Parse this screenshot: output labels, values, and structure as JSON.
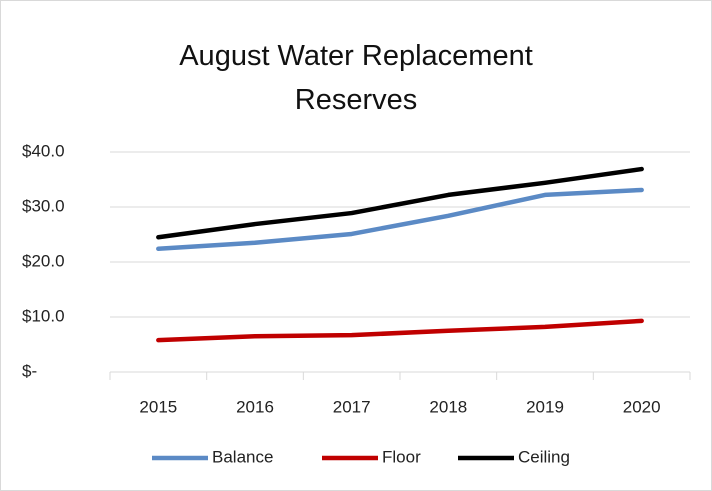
{
  "chart_data": {
    "type": "line",
    "title": "August Water Replacement Reserves",
    "categories": [
      "2015",
      "2016",
      "2017",
      "2018",
      "2019",
      "2020"
    ],
    "series": [
      {
        "name": "Balance",
        "color": "#5b8ac5",
        "values": [
          22.4,
          23.5,
          25.1,
          28.4,
          32.2,
          33.1
        ]
      },
      {
        "name": "Floor",
        "color": "#c00000",
        "values": [
          5.8,
          6.5,
          6.7,
          7.5,
          8.2,
          9.3
        ]
      },
      {
        "name": "Ceiling",
        "color": "#000000",
        "values": [
          24.5,
          26.9,
          28.9,
          32.2,
          34.4,
          36.9
        ]
      }
    ],
    "ylim": [
      0,
      40
    ],
    "yticks": [
      {
        "value": 0,
        "label": "$-"
      },
      {
        "value": 10,
        "label": "$10.0"
      },
      {
        "value": 20,
        "label": "$20.0"
      },
      {
        "value": 30,
        "label": "$30.0"
      },
      {
        "value": 40,
        "label": "$40.0"
      }
    ],
    "grid": true,
    "legend": "bottom"
  }
}
